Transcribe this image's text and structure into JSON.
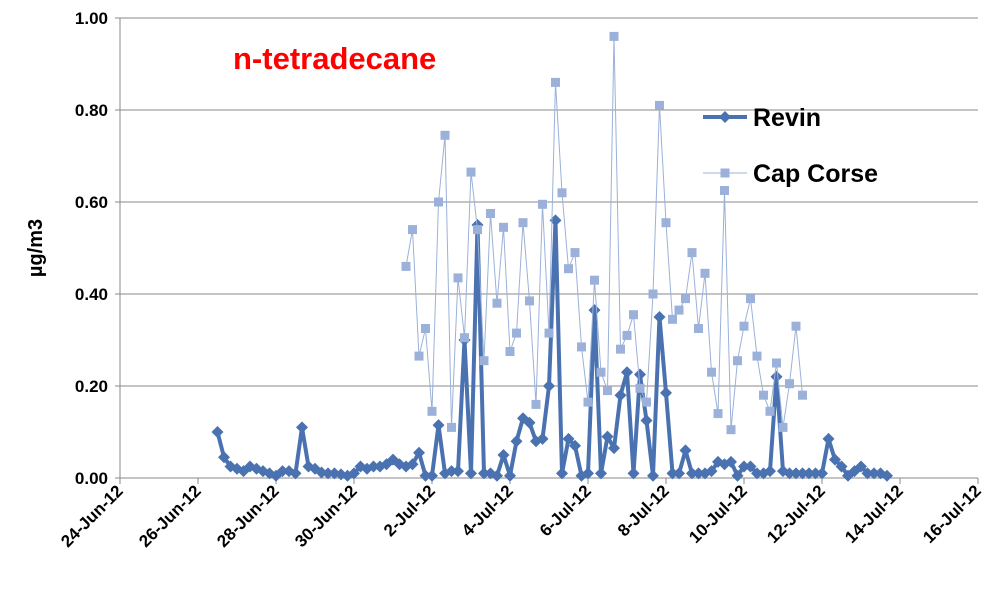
{
  "chart_data": {
    "type": "line",
    "title": "n-tetradecane",
    "title_color": "#ff0000",
    "y_label": "µg/m3",
    "legend": "upper right",
    "grid": true,
    "xlim": [
      "2012-06-24T00:00",
      "2012-07-16T00:00"
    ],
    "xticks": [
      {
        "value": "2012-06-24T00:00",
        "label": "24-Jun-12"
      },
      {
        "value": "2012-06-26T00:00",
        "label": "26-Jun-12"
      },
      {
        "value": "2012-06-28T00:00",
        "label": "28-Jun-12"
      },
      {
        "value": "2012-06-30T00:00",
        "label": "30-Jun-12"
      },
      {
        "value": "2012-07-02T00:00",
        "label": "2-Jul-12"
      },
      {
        "value": "2012-07-04T00:00",
        "label": "4-Jul-12"
      },
      {
        "value": "2012-07-06T00:00",
        "label": "6-Jul-12"
      },
      {
        "value": "2012-07-08T00:00",
        "label": "8-Jul-12"
      },
      {
        "value": "2012-07-10T00:00",
        "label": "10-Jul-12"
      },
      {
        "value": "2012-07-12T00:00",
        "label": "12-Jul-12"
      },
      {
        "value": "2012-07-14T00:00",
        "label": "14-Jul-12"
      },
      {
        "value": "2012-07-16T00:00",
        "label": "16-Jul-12"
      }
    ],
    "ylim": [
      0,
      1
    ],
    "yticks": [
      {
        "value": 0,
        "label": "0.00"
      },
      {
        "value": 0.2,
        "label": "0.20"
      },
      {
        "value": 0.4,
        "label": "0.40"
      },
      {
        "value": 0.6,
        "label": "0.60"
      },
      {
        "value": 0.8,
        "label": "0.80"
      },
      {
        "value": 1,
        "label": "1.00"
      }
    ],
    "x": [
      "2012-06-26T12:00",
      "2012-06-26T16:00",
      "2012-06-26T20:00",
      "2012-06-27T00:00",
      "2012-06-27T04:00",
      "2012-06-27T08:00",
      "2012-06-27T12:00",
      "2012-06-27T16:00",
      "2012-06-27T20:00",
      "2012-06-28T00:00",
      "2012-06-28T04:00",
      "2012-06-28T08:00",
      "2012-06-28T12:00",
      "2012-06-28T16:00",
      "2012-06-28T20:00",
      "2012-06-29T00:00",
      "2012-06-29T04:00",
      "2012-06-29T08:00",
      "2012-06-29T12:00",
      "2012-06-29T16:00",
      "2012-06-29T20:00",
      "2012-06-30T00:00",
      "2012-06-30T04:00",
      "2012-06-30T08:00",
      "2012-06-30T12:00",
      "2012-06-30T16:00",
      "2012-06-30T20:00",
      "2012-07-01T00:00",
      "2012-07-01T04:00",
      "2012-07-01T08:00",
      "2012-07-01T12:00",
      "2012-07-01T16:00",
      "2012-07-01T20:00",
      "2012-07-02T00:00",
      "2012-07-02T04:00",
      "2012-07-02T08:00",
      "2012-07-02T12:00",
      "2012-07-02T16:00",
      "2012-07-02T20:00",
      "2012-07-03T00:00",
      "2012-07-03T04:00",
      "2012-07-03T08:00",
      "2012-07-03T12:00",
      "2012-07-03T16:00",
      "2012-07-03T20:00",
      "2012-07-04T00:00",
      "2012-07-04T04:00",
      "2012-07-04T08:00",
      "2012-07-04T12:00",
      "2012-07-04T16:00",
      "2012-07-04T20:00",
      "2012-07-05T00:00",
      "2012-07-05T04:00",
      "2012-07-05T08:00",
      "2012-07-05T12:00",
      "2012-07-05T16:00",
      "2012-07-05T20:00",
      "2012-07-06T00:00",
      "2012-07-06T04:00",
      "2012-07-06T08:00",
      "2012-07-06T12:00",
      "2012-07-06T16:00",
      "2012-07-06T20:00",
      "2012-07-07T00:00",
      "2012-07-07T04:00",
      "2012-07-07T08:00",
      "2012-07-07T12:00",
      "2012-07-07T16:00",
      "2012-07-07T20:00",
      "2012-07-08T00:00",
      "2012-07-08T04:00",
      "2012-07-08T08:00",
      "2012-07-08T12:00",
      "2012-07-08T16:00",
      "2012-07-08T20:00",
      "2012-07-09T00:00",
      "2012-07-09T04:00",
      "2012-07-09T08:00",
      "2012-07-09T12:00",
      "2012-07-09T16:00",
      "2012-07-09T20:00",
      "2012-07-10T00:00",
      "2012-07-10T04:00",
      "2012-07-10T08:00",
      "2012-07-10T12:00",
      "2012-07-10T16:00",
      "2012-07-10T20:00",
      "2012-07-11T00:00",
      "2012-07-11T04:00",
      "2012-07-11T08:00",
      "2012-07-11T12:00",
      "2012-07-11T16:00",
      "2012-07-11T20:00",
      "2012-07-12T00:00",
      "2012-07-12T04:00",
      "2012-07-12T08:00",
      "2012-07-12T12:00",
      "2012-07-12T16:00",
      "2012-07-12T20:00",
      "2012-07-13T00:00",
      "2012-07-13T04:00",
      "2012-07-13T08:00",
      "2012-07-13T12:00",
      "2012-07-13T16:00"
    ],
    "series": [
      {
        "name": "Revin",
        "color": "#4a72b0",
        "values": [
          0.1,
          0.045,
          0.025,
          0.02,
          0.015,
          0.025,
          0.02,
          0.015,
          0.01,
          0.005,
          0.015,
          0.015,
          0.01,
          0.11,
          0.025,
          0.02,
          0.012,
          0.01,
          0.01,
          0.008,
          0.005,
          0.01,
          0.025,
          0.02,
          0.025,
          0.025,
          0.03,
          0.04,
          0.03,
          0.025,
          0.03,
          0.055,
          0.005,
          0.005,
          0.115,
          0.01,
          0.015,
          0.015,
          0.3,
          0.01,
          0.55,
          0.01,
          0.01,
          0.005,
          0.05,
          0.005,
          0.08,
          0.13,
          0.12,
          0.08,
          0.085,
          0.2,
          0.56,
          0.01,
          0.085,
          0.07,
          0.005,
          0.01,
          0.365,
          0.01,
          0.09,
          0.065,
          0.18,
          0.23,
          0.01,
          0.225,
          0.125,
          0.005,
          0.35,
          0.185,
          0.01,
          0.01,
          0.06,
          0.01,
          0.01,
          0.01,
          0.015,
          0.035,
          0.03,
          0.035,
          0.005,
          0.025,
          0.025,
          0.01,
          0.01,
          0.015,
          0.22,
          0.015,
          0.01,
          0.01,
          0.01,
          0.01,
          0.01,
          0.01,
          0.085,
          0.04,
          0.025,
          0.005,
          0.015,
          0.025,
          0.01,
          0.01,
          0.01,
          0.005
        ]
      },
      {
        "name": "Cap Corse",
        "color": "#9bb1d9",
        "values": [
          null,
          null,
          null,
          null,
          null,
          null,
          null,
          null,
          null,
          null,
          null,
          null,
          null,
          null,
          null,
          null,
          null,
          null,
          null,
          null,
          null,
          null,
          null,
          null,
          null,
          null,
          null,
          null,
          null,
          0.46,
          0.54,
          0.265,
          0.325,
          0.145,
          0.6,
          0.745,
          0.11,
          0.435,
          0.305,
          0.665,
          0.54,
          0.255,
          0.575,
          0.38,
          0.545,
          0.275,
          0.315,
          0.555,
          0.385,
          0.16,
          0.595,
          0.315,
          0.86,
          0.62,
          0.455,
          0.49,
          0.285,
          0.165,
          0.43,
          0.23,
          0.19,
          0.96,
          0.28,
          0.31,
          0.355,
          0.195,
          0.165,
          0.4,
          0.81,
          0.555,
          0.345,
          0.365,
          0.39,
          0.49,
          0.325,
          0.445,
          0.23,
          0.14,
          0.625,
          0.105,
          0.255,
          0.33,
          0.39,
          0.265,
          0.18,
          0.145,
          0.25,
          0.11,
          0.205,
          0.33,
          0.18,
          null,
          null,
          null,
          null,
          null,
          null,
          null,
          null,
          null,
          null,
          null,
          null,
          null
        ]
      }
    ]
  }
}
